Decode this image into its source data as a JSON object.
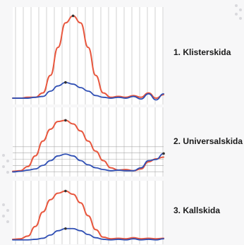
{
  "chart_data": [
    {
      "type": "line",
      "title": "1. Klisterskida",
      "xlabel": "",
      "ylabel": "",
      "x": [
        0,
        1,
        2,
        3,
        4,
        5,
        6,
        7,
        8,
        9,
        10,
        11,
        12,
        13,
        14,
        15,
        16,
        17,
        18,
        19,
        20
      ],
      "ylim": [
        0,
        1
      ],
      "grid": true,
      "series": [
        {
          "color": "#e8573e",
          "values": [
            0.04,
            0.04,
            0.05,
            0.05,
            0.1,
            0.3,
            0.62,
            0.9,
            0.98,
            0.9,
            0.62,
            0.3,
            0.1,
            0.05,
            0.06,
            0.05,
            0.07,
            0.05,
            0.1,
            0.04,
            0.08
          ]
        },
        {
          "color": "#2f4fb4",
          "values": [
            0.04,
            0.04,
            0.04,
            0.05,
            0.06,
            0.12,
            0.18,
            0.22,
            0.2,
            0.16,
            0.12,
            0.07,
            0.05,
            0.04,
            0.05,
            0.04,
            0.06,
            0.03,
            0.09,
            0.02,
            0.09
          ]
        }
      ]
    },
    {
      "type": "line",
      "title": "2. Universalskida",
      "xlabel": "",
      "ylabel": "",
      "x": [
        0,
        1,
        2,
        3,
        4,
        5,
        6,
        7,
        8,
        9,
        10,
        11,
        12,
        13,
        14,
        15,
        16,
        17,
        18,
        19,
        20
      ],
      "ylim": [
        0,
        1
      ],
      "grid": true,
      "series": [
        {
          "color": "#e8573e",
          "values": [
            0.04,
            0.05,
            0.12,
            0.3,
            0.55,
            0.75,
            0.88,
            0.9,
            0.84,
            0.72,
            0.55,
            0.38,
            0.22,
            0.1,
            0.06,
            0.07,
            0.05,
            0.08,
            0.2,
            0.25,
            0.28
          ]
        },
        {
          "color": "#2f4fb4",
          "values": [
            0.03,
            0.04,
            0.06,
            0.08,
            0.14,
            0.22,
            0.3,
            0.33,
            0.3,
            0.22,
            0.15,
            0.1,
            0.07,
            0.05,
            0.06,
            0.05,
            0.05,
            0.1,
            0.22,
            0.24,
            0.34
          ]
        }
      ]
    },
    {
      "type": "line",
      "title": "3. Kallskida",
      "xlabel": "",
      "ylabel": "",
      "x": [
        0,
        1,
        2,
        3,
        4,
        5,
        6,
        7,
        8,
        9,
        10,
        11,
        12,
        13,
        14,
        15,
        16,
        17,
        18,
        19,
        20
      ],
      "ylim": [
        0,
        1
      ],
      "grid": true,
      "series": [
        {
          "color": "#e8573e",
          "values": [
            0.04,
            0.05,
            0.1,
            0.28,
            0.55,
            0.78,
            0.9,
            0.94,
            0.88,
            0.72,
            0.48,
            0.22,
            0.08,
            0.05,
            0.06,
            0.05,
            0.07,
            0.05,
            0.06,
            0.05,
            0.06
          ]
        },
        {
          "color": "#2f4fb4",
          "values": [
            0.03,
            0.03,
            0.03,
            0.04,
            0.06,
            0.12,
            0.2,
            0.24,
            0.24,
            0.2,
            0.13,
            0.07,
            0.04,
            0.03,
            0.04,
            0.03,
            0.05,
            0.03,
            0.04,
            0.03,
            0.05
          ]
        }
      ]
    }
  ]
}
